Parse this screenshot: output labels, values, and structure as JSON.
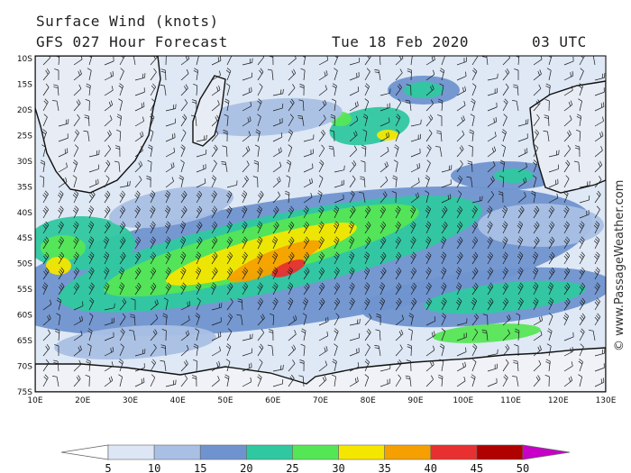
{
  "header": {
    "title": "Surface Wind (knots)",
    "model": "GFS 027 Hour Forecast",
    "date": "Tue 18 Feb 2020",
    "time": "03 UTC"
  },
  "credit": "© www.PassageWeather.com",
  "map": {
    "lat_labels": [
      "10S",
      "15S",
      "20S",
      "25S",
      "30S",
      "35S",
      "40S",
      "45S",
      "50S",
      "55S",
      "60S",
      "65S",
      "70S",
      "75S"
    ],
    "lon_labels": [
      "10E",
      "20E",
      "30E",
      "40E",
      "50E",
      "60E",
      "70E",
      "80E",
      "90E",
      "100E",
      "110E",
      "120E",
      "130E"
    ],
    "lat_range": [
      -10,
      -75
    ],
    "lon_range": [
      10,
      130
    ]
  },
  "legend": {
    "ticks": [
      "5",
      "10",
      "15",
      "20",
      "25",
      "30",
      "35",
      "40",
      "45",
      "50"
    ],
    "colors": [
      "#ffffff",
      "#dce6f5",
      "#a9c0e4",
      "#6f93cf",
      "#2fc8a0",
      "#55e655",
      "#f5e600",
      "#f5a000",
      "#e83030",
      "#b00000",
      "#c800c8"
    ]
  }
}
